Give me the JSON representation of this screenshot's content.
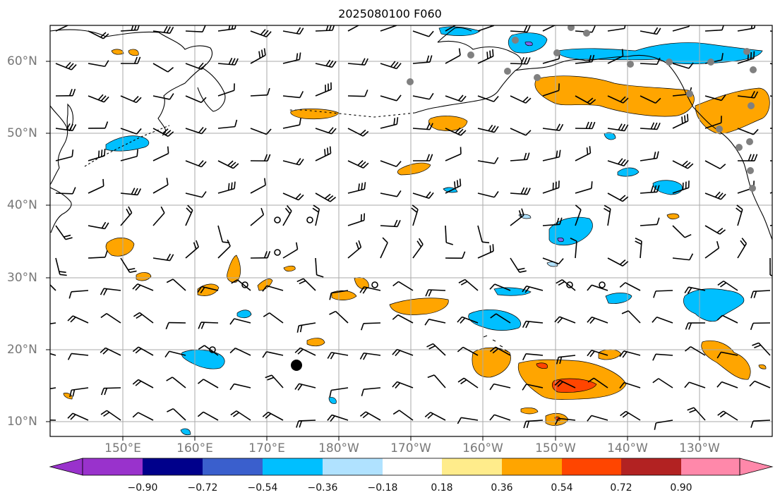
{
  "title": "2025080100 F060",
  "lat_labels": [
    "60°N",
    "50°N",
    "40°N",
    "30°N",
    "20°N",
    "10°N"
  ],
  "lon_labels": [
    "150°E",
    "160°E",
    "170°E",
    "180°W",
    "170°W",
    "160°W",
    "150°W",
    "140°W",
    "130°W"
  ],
  "colorbar": {
    "tick_labels": [
      "−0.90",
      "−0.72",
      "−0.54",
      "−0.36",
      "−0.18",
      "0.18",
      "0.36",
      "0.54",
      "0.72",
      "0.90"
    ],
    "colors": [
      "#9932CC",
      "#00008B",
      "#3A5FCD",
      "#00BFFF",
      "#B0E2FF",
      "#FFFFFF",
      "#FFEC8B",
      "#FFA500",
      "#FF4500",
      "#B22222",
      "#FF88AA"
    ]
  },
  "map_colors": {
    "land_outline": "#000000",
    "grid": "#aaaaaa",
    "station_marker": "#808080",
    "positive_fill": "#FFA500",
    "positive_strong": "#FF4500",
    "negative_fill": "#00BFFF",
    "negative_strong": "#7B68EE"
  }
}
